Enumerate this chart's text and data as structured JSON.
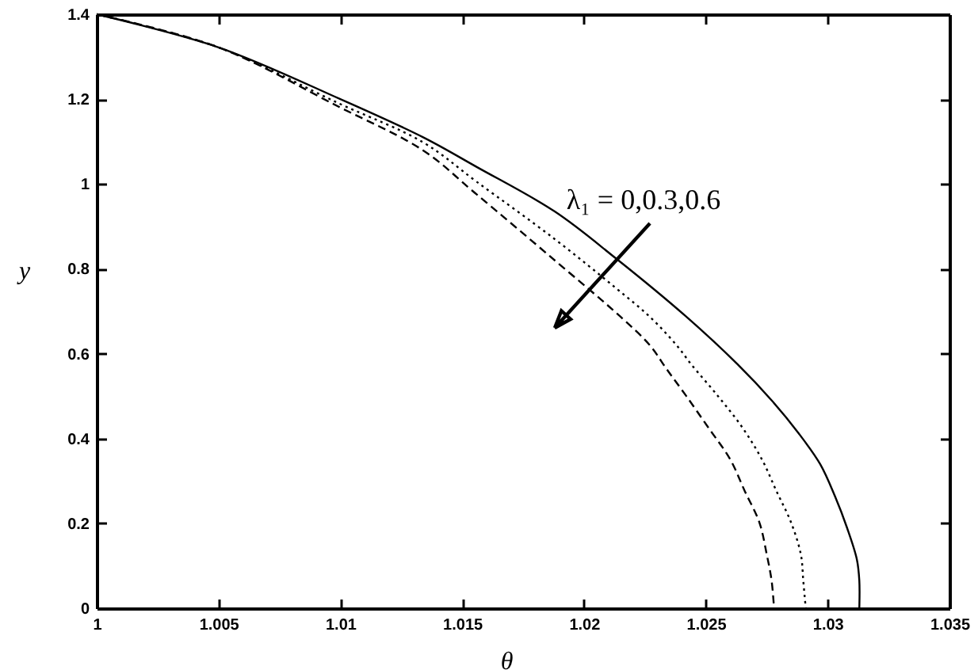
{
  "chart_data": {
    "type": "line",
    "xlabel": "θ",
    "ylabel": "y",
    "annotations": [
      "λ₁ = 0,0.3,0.6"
    ],
    "xlim": [
      1,
      1.035
    ],
    "ylim": [
      0,
      1.4
    ],
    "xticks": [
      1,
      1.005,
      1.01,
      1.015,
      1.02,
      1.025,
      1.03,
      1.035
    ],
    "yticks": [
      0,
      0.2,
      0.4,
      0.6,
      0.8,
      1,
      1.2,
      1.4
    ],
    "series": [
      {
        "color": "#000000",
        "line_style": "solid",
        "x": [
          1,
          1.005,
          1.01,
          1.0134,
          1.0156,
          1.0188,
          1.0213,
          1.0242,
          1.0263,
          1.0277,
          1.0288,
          1.0297,
          1.0303,
          1.0308,
          1.0312,
          1.0313,
          1.0313
        ],
        "values": [
          1.4,
          1.322,
          1.2,
          1.11,
          1.04,
          0.935,
          0.825,
          0.687,
          0.575,
          0.49,
          0.413,
          0.339,
          0.264,
          0.189,
          0.115,
          0.065,
          0
        ]
      },
      {
        "color": "#000000",
        "line_style": "dotted",
        "x": [
          1,
          1.005,
          1.0099,
          1.0134,
          1.0156,
          1.0188,
          1.0213,
          1.0227,
          1.0238,
          1.0244,
          1.0255,
          1.0265,
          1.0273,
          1.0279,
          1.0285,
          1.0289,
          1.029,
          1.0291
        ],
        "values": [
          1.4,
          1.322,
          1.191,
          1.098,
          1.005,
          0.87,
          0.755,
          0.687,
          0.62,
          0.575,
          0.5,
          0.426,
          0.351,
          0.276,
          0.202,
          0.127,
          0.065,
          0
        ]
      },
      {
        "color": "#000000",
        "line_style": "dashed",
        "x": [
          1,
          1.005,
          1.0099,
          1.0134,
          1.0155,
          1.0188,
          1.0215,
          1.0227,
          1.0234,
          1.0242,
          1.0251,
          1.026,
          1.0266,
          1.0272,
          1.0275,
          1.0277,
          1.0278
        ],
        "values": [
          1.4,
          1.322,
          1.183,
          1.079,
          0.98,
          0.82,
          0.687,
          0.62,
          0.563,
          0.5,
          0.426,
          0.351,
          0.276,
          0.202,
          0.127,
          0.065,
          0
        ]
      }
    ]
  }
}
